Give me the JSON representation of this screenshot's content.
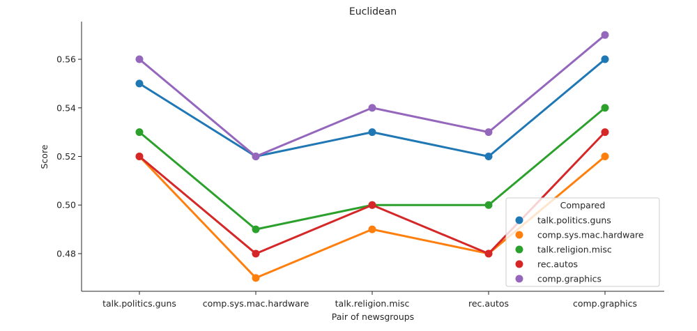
{
  "chart_data": {
    "type": "line",
    "title": "Euclidean",
    "xlabel": "Pair of newsgroups",
    "ylabel": "Score",
    "categories": [
      "talk.politics.guns",
      "comp.sys.mac.hardware",
      "talk.religion.misc",
      "rec.autos",
      "comp.graphics"
    ],
    "ylim": [
      0.4645,
      0.5755
    ],
    "yticks": [
      "0.48",
      "0.50",
      "0.52",
      "0.54",
      "0.56"
    ],
    "grid": false,
    "legend": {
      "title": "Compared",
      "placement": "lower-right"
    },
    "series": [
      {
        "name": "talk.politics.guns",
        "color": "#1f77b4",
        "values": [
          0.55,
          0.52,
          0.53,
          0.52,
          0.56
        ]
      },
      {
        "name": "comp.sys.mac.hardware",
        "color": "#ff7f0e",
        "values": [
          0.52,
          0.47,
          0.49,
          0.48,
          0.52
        ]
      },
      {
        "name": "talk.religion.misc",
        "color": "#2ca02c",
        "values": [
          0.53,
          0.49,
          0.5,
          0.5,
          0.54
        ]
      },
      {
        "name": "rec.autos",
        "color": "#d62728",
        "values": [
          0.52,
          0.48,
          0.5,
          0.48,
          0.53
        ]
      },
      {
        "name": "comp.graphics",
        "color": "#9467bd",
        "values": [
          0.56,
          0.52,
          0.54,
          0.53,
          0.57
        ]
      }
    ]
  }
}
